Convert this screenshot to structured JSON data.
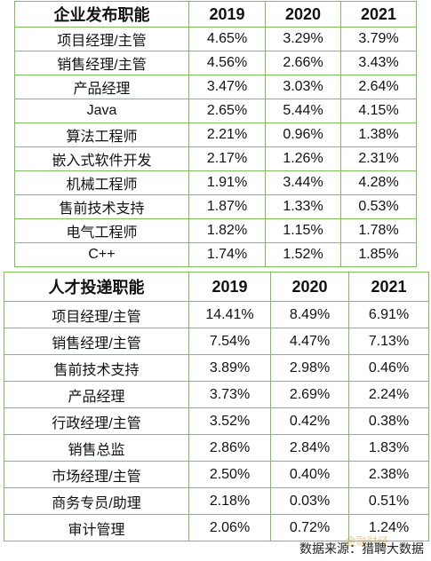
{
  "table1": {
    "headers": [
      "企业发布职能",
      "2019",
      "2020",
      "2021"
    ],
    "rows": [
      [
        "项目经理/主管",
        "4.65%",
        "3.29%",
        "3.79%"
      ],
      [
        "销售经理/主管",
        "4.56%",
        "2.66%",
        "3.43%"
      ],
      [
        "产品经理",
        "3.47%",
        "3.03%",
        "2.64%"
      ],
      [
        "Java",
        "2.65%",
        "5.44%",
        "4.15%"
      ],
      [
        "算法工程师",
        "2.21%",
        "0.96%",
        "1.38%"
      ],
      [
        "嵌入式软件开发",
        "2.17%",
        "1.26%",
        "2.31%"
      ],
      [
        "机械工程师",
        "1.91%",
        "3.44%",
        "4.28%"
      ],
      [
        "售前技术支持",
        "1.87%",
        "1.33%",
        "0.53%"
      ],
      [
        "电气工程师",
        "1.82%",
        "1.15%",
        "1.78%"
      ],
      [
        "C++",
        "1.74%",
        "1.52%",
        "1.85%"
      ]
    ]
  },
  "table2": {
    "headers": [
      "人才投递职能",
      "2019",
      "2020",
      "2021"
    ],
    "rows": [
      [
        "项目经理/主管",
        "14.41%",
        "8.49%",
        "6.91%"
      ],
      [
        "销售经理/主管",
        "7.54%",
        "4.47%",
        "7.13%"
      ],
      [
        "售前技术支持",
        "3.89%",
        "2.98%",
        "0.46%"
      ],
      [
        "产品经理",
        "3.73%",
        "2.69%",
        "2.24%"
      ],
      [
        "行政经理/主管",
        "3.52%",
        "0.42%",
        "0.38%"
      ],
      [
        "销售总监",
        "2.86%",
        "2.84%",
        "1.83%"
      ],
      [
        "市场经理/主管",
        "2.50%",
        "0.40%",
        "2.38%"
      ],
      [
        "商务专员/助理",
        "2.18%",
        "0.03%",
        "0.51%"
      ],
      [
        "审计管理",
        "2.06%",
        "0.72%",
        "1.24%"
      ]
    ]
  },
  "footer": {
    "source": "数据来源：猎聘大数据",
    "watermark": "金融财经"
  },
  "colors": {
    "border": "#7fbf5a"
  }
}
